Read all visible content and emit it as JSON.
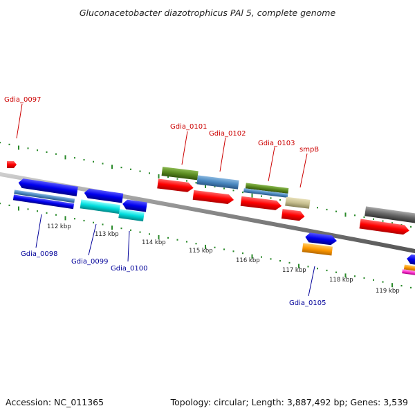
{
  "title": "Gluconacetobacter diazotrophicus PAl 5, complete genome",
  "accession": "Accession: NC_011365",
  "topology": "Topology: circular; Length: 3,887,492 bp; Genes: 3,539",
  "colors": {
    "backbone": "#888888",
    "tick": "#2a8a2a",
    "label_top": "#cc0000",
    "label_bottom": "#000099",
    "red": "#ff0000",
    "blue": "#0000ee",
    "cyan": "#00dddd",
    "olive": "#5a8a20",
    "steelblue": "#4a88c0",
    "khaki": "#c8c090",
    "orange": "#ff9900",
    "gray": "#666666",
    "magenta": "#ff33cc"
  },
  "kbp_labels": [
    "112 kbp",
    "113 kbp",
    "114 kbp",
    "115 kbp",
    "116 kbp",
    "117 kbp",
    "118 kbp",
    "119 kbp"
  ],
  "gene_labels_top": [
    "Gdia_0097",
    "Gdia_0101",
    "Gdia_0102",
    "Gdia_0103",
    "smpB"
  ],
  "gene_labels_bottom": [
    "Gdia_0098",
    "Gdia_0099",
    "Gdia_0100",
    "Gdia_0105"
  ]
}
